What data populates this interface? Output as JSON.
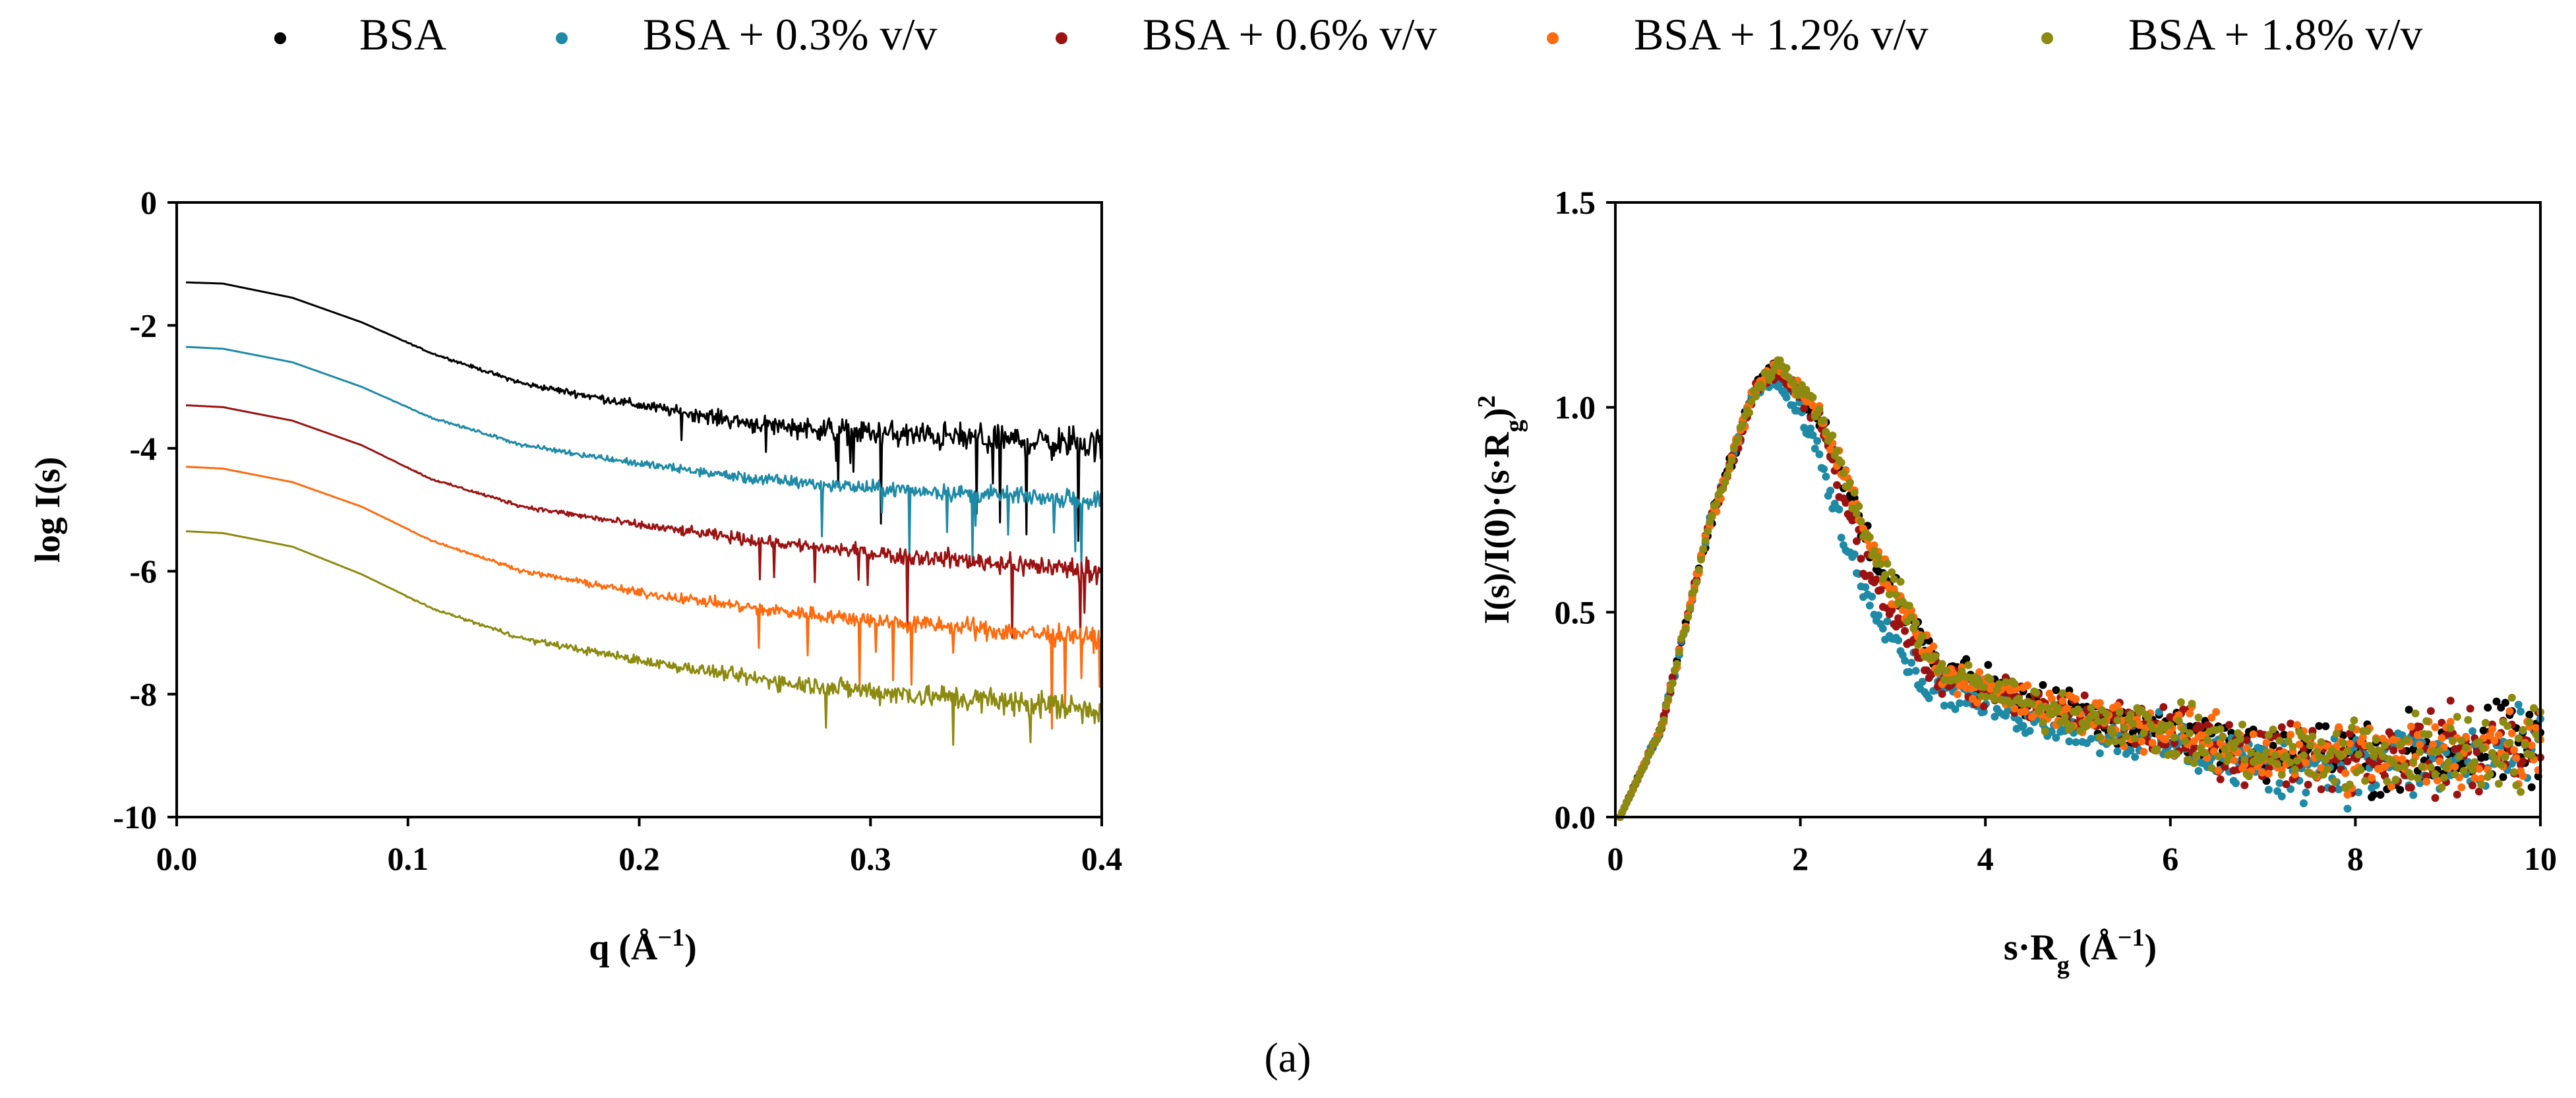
{
  "legend": {
    "items": [
      {
        "label": "BSA",
        "color": "#000000"
      },
      {
        "label": "BSA + 0.3% v/v",
        "color": "#1f8aa6"
      },
      {
        "label": "BSA + 0.6% v/v",
        "color": "#9b1212"
      },
      {
        "label": "BSA + 1.2% v/v",
        "color": "#ff6b0f"
      },
      {
        "label": "BSA + 1.8% v/v",
        "color": "#8c8a10"
      }
    ]
  },
  "caption": "(a)",
  "chart_data": [
    {
      "type": "line",
      "title": "",
      "xlabel_main": "q (Å",
      "xlabel_sup": "−1",
      "xlabel_end": ")",
      "ylabel": "log I(s)",
      "xlim": [
        0.0,
        0.4
      ],
      "ylim": [
        -10,
        0
      ],
      "xticks": [
        0.0,
        0.1,
        0.2,
        0.3,
        0.4
      ],
      "xtick_labels": [
        "0.0",
        "0.1",
        "0.2",
        "0.3",
        "0.4"
      ],
      "yticks": [
        0,
        -2,
        -4,
        -6,
        -8,
        -10
      ],
      "ytick_labels": [
        "0",
        "-2",
        "-4",
        "-6",
        "-8",
        "-10"
      ],
      "series": [
        {
          "name": "BSA",
          "color": "#000000",
          "x": [
            0.004,
            0.02,
            0.05,
            0.08,
            0.11,
            0.15,
            0.2,
            0.25,
            0.3,
            0.35,
            0.4
          ],
          "y": [
            -1.3,
            -1.32,
            -1.55,
            -1.95,
            -2.45,
            -2.95,
            -3.3,
            -3.6,
            -3.75,
            -3.85,
            -3.95
          ],
          "noise": [
            0.0,
            0.0,
            0.0,
            0.0,
            0.02,
            0.06,
            0.12,
            0.22,
            0.3,
            0.36,
            0.42
          ]
        },
        {
          "name": "BSA + 0.3% v/v",
          "color": "#1f8aa6",
          "x": [
            0.004,
            0.02,
            0.05,
            0.08,
            0.11,
            0.15,
            0.2,
            0.25,
            0.3,
            0.35,
            0.4
          ],
          "y": [
            -2.35,
            -2.38,
            -2.6,
            -3.0,
            -3.5,
            -3.95,
            -4.25,
            -4.5,
            -4.65,
            -4.75,
            -4.85
          ],
          "noise": [
            0.0,
            0.0,
            0.0,
            0.0,
            0.02,
            0.05,
            0.09,
            0.14,
            0.18,
            0.2,
            0.22
          ]
        },
        {
          "name": "BSA + 0.6% v/v",
          "color": "#9b1212",
          "x": [
            0.004,
            0.02,
            0.05,
            0.08,
            0.11,
            0.15,
            0.2,
            0.25,
            0.3,
            0.35,
            0.4
          ],
          "y": [
            -3.3,
            -3.33,
            -3.55,
            -3.95,
            -4.5,
            -4.95,
            -5.25,
            -5.5,
            -5.7,
            -5.85,
            -6.0
          ],
          "noise": [
            0.0,
            0.0,
            0.0,
            0.0,
            0.02,
            0.05,
            0.1,
            0.15,
            0.2,
            0.24,
            0.28
          ]
        },
        {
          "name": "BSA + 1.2% v/v",
          "color": "#ff6b0f",
          "x": [
            0.004,
            0.02,
            0.05,
            0.08,
            0.11,
            0.15,
            0.2,
            0.25,
            0.3,
            0.35,
            0.4
          ],
          "y": [
            -4.3,
            -4.33,
            -4.55,
            -4.95,
            -5.5,
            -6.0,
            -6.35,
            -6.6,
            -6.8,
            -6.95,
            -7.1
          ],
          "noise": [
            0.0,
            0.0,
            0.0,
            0.0,
            0.02,
            0.05,
            0.1,
            0.16,
            0.2,
            0.24,
            0.28
          ]
        },
        {
          "name": "BSA + 1.8% v/v",
          "color": "#8c8a10",
          "x": [
            0.004,
            0.02,
            0.05,
            0.08,
            0.11,
            0.15,
            0.2,
            0.25,
            0.3,
            0.35,
            0.4
          ],
          "y": [
            -5.35,
            -5.38,
            -5.6,
            -6.05,
            -6.6,
            -7.1,
            -7.45,
            -7.75,
            -7.95,
            -8.1,
            -8.25
          ],
          "noise": [
            0.0,
            0.0,
            0.0,
            0.0,
            0.02,
            0.06,
            0.12,
            0.2,
            0.26,
            0.32,
            0.38
          ]
        }
      ]
    },
    {
      "type": "scatter",
      "title": "",
      "xlabel_main": "s·R",
      "xlabel_sub": "g",
      "xlabel_mid": " (Å",
      "xlabel_sup": "−1",
      "xlabel_end": ")",
      "ylabel_main": "I(s)/I(0)·(s·R",
      "ylabel_sub": "g",
      "ylabel_mid": ")",
      "ylabel_sup": "2",
      "xlim": [
        0,
        10
      ],
      "ylim": [
        0.0,
        1.5
      ],
      "xticks": [
        0,
        2,
        4,
        6,
        8,
        10
      ],
      "xtick_labels": [
        "0",
        "2",
        "4",
        "6",
        "8",
        "10"
      ],
      "yticks": [
        0.0,
        0.5,
        1.0,
        1.5
      ],
      "ytick_labels": [
        "0.0",
        "0.5",
        "1.0",
        "1.5"
      ],
      "peak": {
        "x": 1.75,
        "y": 1.1
      },
      "series": [
        {
          "name": "BSA",
          "color": "#000000",
          "x": [
            0.05,
            0.5,
            1.0,
            1.5,
            1.75,
            2.2,
            2.8,
            3.5,
            4.5,
            5.5,
            7.0,
            8.5,
            10.0
          ],
          "y": [
            0.0,
            0.22,
            0.7,
            1.04,
            1.1,
            0.98,
            0.63,
            0.37,
            0.28,
            0.24,
            0.16,
            0.15,
            0.17
          ],
          "spread": [
            0.0,
            0.01,
            0.02,
            0.02,
            0.02,
            0.03,
            0.04,
            0.04,
            0.05,
            0.06,
            0.08,
            0.1,
            0.12
          ]
        },
        {
          "name": "BSA + 0.3% v/v",
          "color": "#1f8aa6",
          "x": [
            0.05,
            0.5,
            1.0,
            1.5,
            1.7,
            2.1,
            2.6,
            3.3,
            4.5,
            5.5,
            7.0,
            8.5,
            10.0
          ],
          "y": [
            0.0,
            0.22,
            0.7,
            1.03,
            1.07,
            0.95,
            0.6,
            0.33,
            0.24,
            0.2,
            0.12,
            0.13,
            0.16
          ],
          "spread": [
            0.0,
            0.01,
            0.02,
            0.02,
            0.02,
            0.03,
            0.04,
            0.04,
            0.05,
            0.06,
            0.08,
            0.1,
            0.12
          ]
        },
        {
          "name": "BSA + 0.6% v/v",
          "color": "#9b1212",
          "x": [
            0.05,
            0.5,
            1.0,
            1.5,
            1.75,
            2.2,
            2.7,
            3.4,
            4.5,
            5.5,
            7.0,
            8.5,
            10.0
          ],
          "y": [
            0.0,
            0.22,
            0.7,
            1.03,
            1.09,
            0.97,
            0.62,
            0.35,
            0.27,
            0.23,
            0.15,
            0.15,
            0.18
          ],
          "spread": [
            0.0,
            0.01,
            0.02,
            0.02,
            0.02,
            0.03,
            0.04,
            0.04,
            0.05,
            0.06,
            0.08,
            0.1,
            0.12
          ]
        },
        {
          "name": "BSA + 1.2% v/v",
          "color": "#ff6b0f",
          "x": [
            0.05,
            0.5,
            1.0,
            1.5,
            1.75,
            2.2,
            2.8,
            3.5,
            4.5,
            5.5,
            7.0,
            8.5,
            10.0
          ],
          "y": [
            0.0,
            0.22,
            0.7,
            1.04,
            1.1,
            0.99,
            0.64,
            0.36,
            0.27,
            0.23,
            0.15,
            0.15,
            0.18
          ],
          "spread": [
            0.0,
            0.01,
            0.02,
            0.02,
            0.02,
            0.03,
            0.04,
            0.04,
            0.05,
            0.06,
            0.08,
            0.1,
            0.12
          ]
        },
        {
          "name": "BSA + 1.8% v/v",
          "color": "#8c8a10",
          "x": [
            0.05,
            0.5,
            1.0,
            1.5,
            1.75,
            2.2,
            2.8,
            3.5,
            4.5,
            5.5,
            7.0,
            8.5,
            10.0
          ],
          "y": [
            0.0,
            0.22,
            0.7,
            1.04,
            1.11,
            0.99,
            0.64,
            0.36,
            0.27,
            0.23,
            0.15,
            0.15,
            0.18
          ],
          "spread": [
            0.0,
            0.01,
            0.02,
            0.02,
            0.02,
            0.03,
            0.04,
            0.04,
            0.05,
            0.06,
            0.08,
            0.1,
            0.12
          ]
        }
      ]
    }
  ]
}
